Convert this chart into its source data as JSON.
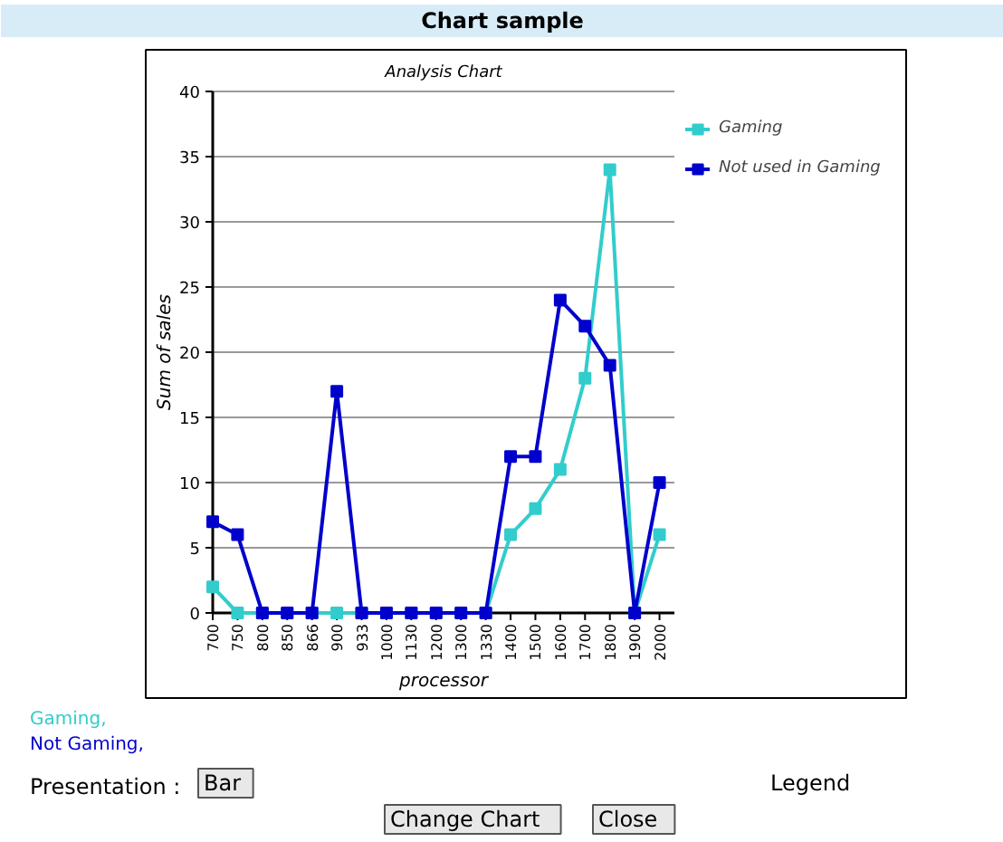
{
  "chart_data": {
    "type": "line",
    "title": "Chart sample",
    "subtitle": "Analysis Chart",
    "xlabel": "processor",
    "ylabel": "Sum of sales",
    "categories": [
      "700",
      "750",
      "800",
      "850",
      "866",
      "900",
      "933",
      "1000",
      "1130",
      "1200",
      "1300",
      "1330",
      "1400",
      "1500",
      "1600",
      "1700",
      "1800",
      "1900",
      "2000"
    ],
    "series": [
      {
        "name": "Gaming",
        "color": "#33cccc",
        "values": [
          2,
          0,
          0,
          0,
          0,
          0,
          0,
          0,
          0,
          0,
          0,
          0,
          6,
          8,
          11,
          18,
          34,
          0,
          6
        ]
      },
      {
        "name": "Not used in Gaming",
        "color": "#0000cc",
        "values": [
          7,
          6,
          0,
          0,
          0,
          17,
          0,
          0,
          0,
          0,
          0,
          0,
          12,
          12,
          24,
          22,
          19,
          0,
          10
        ]
      }
    ],
    "ylim": [
      0,
      40
    ],
    "yticks": [
      0,
      5,
      10,
      15,
      20,
      25,
      30,
      35,
      40
    ],
    "grid": "y",
    "legend": "top right",
    "marker": "square",
    "line_style": "solid",
    "annotations": [
      "Gaming,",
      "Not Gaming,",
      "Presentation :",
      "Bar",
      "Legend",
      "Change Chart",
      "Close"
    ]
  }
}
